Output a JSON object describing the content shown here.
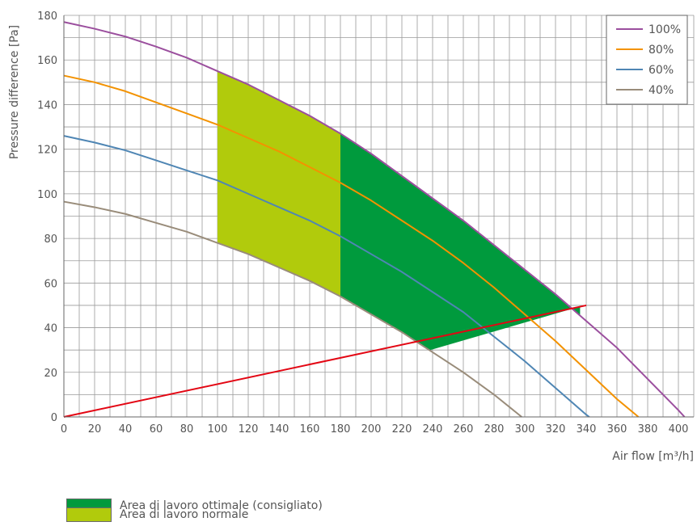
{
  "chart_data": {
    "type": "line",
    "title": "",
    "xlabel": "Air flow [m³/h]",
    "ylabel": "Pressure difference [Pa]",
    "xlim": [
      0,
      410
    ],
    "ylim": [
      0,
      180
    ],
    "x_ticks": [
      0,
      20,
      40,
      60,
      80,
      100,
      120,
      140,
      160,
      180,
      200,
      220,
      240,
      260,
      280,
      300,
      320,
      340,
      360,
      380,
      400
    ],
    "y_ticks": [
      0,
      20,
      40,
      60,
      80,
      100,
      120,
      140,
      160,
      180
    ],
    "grid": true,
    "legend": "top-right",
    "series": [
      {
        "name": "100%",
        "color": "#9b4f9e",
        "x": [
          0,
          20,
          40,
          60,
          80,
          100,
          120,
          140,
          160,
          180,
          200,
          220,
          240,
          260,
          280,
          300,
          320,
          340,
          360,
          380,
          400,
          404
        ],
        "y": [
          177,
          174,
          170.5,
          166,
          161,
          155,
          149,
          142,
          135,
          127,
          118,
          108,
          98,
          88,
          77,
          66,
          55,
          43,
          31,
          17,
          3,
          0
        ]
      },
      {
        "name": "80%",
        "color": "#f39200",
        "x": [
          0,
          20,
          40,
          60,
          80,
          100,
          120,
          140,
          160,
          180,
          200,
          220,
          240,
          260,
          280,
          300,
          320,
          340,
          360,
          374
        ],
        "y": [
          153,
          150,
          146,
          141,
          136,
          131,
          125,
          119,
          112,
          105,
          97,
          88,
          79,
          69,
          58,
          46,
          34,
          21,
          8,
          0
        ]
      },
      {
        "name": "60%",
        "color": "#4f86b4",
        "x": [
          0,
          20,
          40,
          60,
          80,
          100,
          120,
          140,
          160,
          180,
          200,
          220,
          240,
          260,
          280,
          300,
          320,
          340,
          342
        ],
        "y": [
          126,
          123,
          119.5,
          115,
          110.5,
          106,
          100,
          94,
          88,
          81,
          73,
          65,
          56,
          47,
          36,
          25,
          13,
          1,
          0
        ]
      },
      {
        "name": "40%",
        "color": "#998c7a",
        "x": [
          0,
          20,
          40,
          60,
          80,
          100,
          120,
          140,
          160,
          180,
          200,
          220,
          240,
          260,
          280,
          298
        ],
        "y": [
          96.5,
          94,
          91,
          87,
          83,
          78,
          73,
          67,
          61,
          54,
          46,
          38,
          29,
          20,
          10,
          0
        ]
      },
      {
        "name": "",
        "color": "#e30613",
        "x": [
          0,
          340
        ],
        "y": [
          0,
          50
        ]
      }
    ],
    "areas": [
      {
        "label": "Area di lavoro ottimale (consigliato)",
        "color": "#009a3d",
        "x_range": [
          180,
          336
        ],
        "upper_series": "100%",
        "lower": {
          "x": [
            180,
            238,
            336
          ],
          "y": [
            54,
            29.5,
            49.5
          ]
        }
      },
      {
        "label": "Area di lavoro normale",
        "color": "#b1cb0c",
        "x_range": [
          100,
          180
        ],
        "upper_series": "100%",
        "lower_series": "40%"
      }
    ]
  }
}
